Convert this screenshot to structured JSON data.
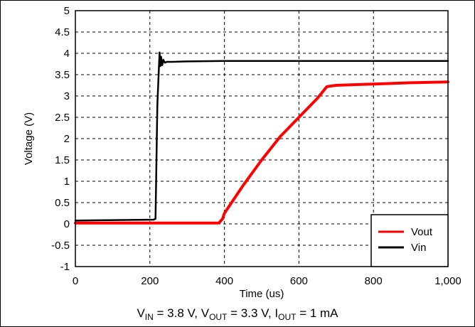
{
  "chart_data": {
    "type": "line",
    "title": "",
    "xlabel": "Time (us)",
    "ylabel": "Voltage (V)",
    "xlim": [
      0,
      1000
    ],
    "ylim": [
      -1,
      5
    ],
    "x_ticks": [
      "0",
      "200",
      "400",
      "600",
      "800",
      "1,000"
    ],
    "y_ticks": [
      "5",
      "4.5",
      "4",
      "3.5",
      "3",
      "2.5",
      "2",
      "1.5",
      "1",
      "0.5",
      "0",
      "-0.5",
      "-1"
    ],
    "grid": true,
    "legend_position": "bottom-right",
    "series": [
      {
        "name": "Vout",
        "color": "#ff0000",
        "x": [
          0,
          100,
          200,
          300,
          385,
          395,
          400,
          450,
          500,
          550,
          600,
          650,
          675,
          700,
          800,
          900,
          1000
        ],
        "y": [
          0.02,
          0.02,
          0.02,
          0.02,
          0.02,
          0.12,
          0.25,
          0.9,
          1.5,
          2.05,
          2.5,
          2.95,
          3.22,
          3.25,
          3.28,
          3.31,
          3.33
        ]
      },
      {
        "name": "Vin",
        "color": "#000000",
        "x": [
          0,
          210,
          215,
          220,
          226,
          228,
          230,
          233,
          236,
          240,
          245,
          260,
          300,
          400,
          600,
          800,
          1000
        ],
        "y": [
          0.08,
          0.1,
          0.12,
          2.8,
          4.02,
          3.7,
          3.92,
          3.72,
          3.85,
          3.78,
          3.8,
          3.8,
          3.81,
          3.82,
          3.82,
          3.82,
          3.82
        ]
      }
    ]
  },
  "caption": {
    "v_in_sub": "IN",
    "v_in_value": " = 3.8 V, V",
    "v_out_sub": "OUT",
    "v_out_value": " = 3.3 V, I",
    "i_out_sub": "OUT",
    "i_out_value": " = 1 mA"
  }
}
